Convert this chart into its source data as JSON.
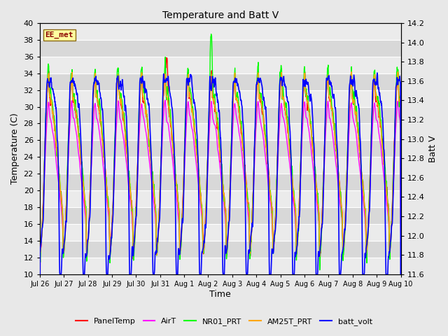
{
  "title": "Temperature and Batt V",
  "xlabel": "Time",
  "ylabel_left": "Temperature (C)",
  "ylabel_right": "Batt V",
  "ylim_left": [
    10,
    40
  ],
  "ylim_right": [
    11.6,
    14.2
  ],
  "yticks_left": [
    10,
    12,
    14,
    16,
    18,
    20,
    22,
    24,
    26,
    28,
    30,
    32,
    34,
    36,
    38,
    40
  ],
  "yticks_right_vals": [
    11.6,
    11.8,
    12.0,
    12.2,
    12.4,
    12.6,
    12.8,
    13.0,
    13.2,
    13.4,
    13.6,
    13.8,
    14.0,
    14.2
  ],
  "xtick_labels": [
    "Jul 26",
    "Jul 27",
    "Jul 28",
    "Jul 29",
    "Jul 30",
    "Jul 31",
    "Aug 1",
    "Aug 2",
    "Aug 3",
    "Aug 4",
    "Aug 5",
    "Aug 6",
    "Aug 7",
    "Aug 8",
    "Aug 9",
    "Aug 10"
  ],
  "annotation_text": "EE_met",
  "annotation_box_color": "#FFFFA0",
  "annotation_text_color": "#8B0000",
  "annotation_box_edge_color": "#8B6914",
  "line_colors": [
    "red",
    "magenta",
    "lime",
    "orange",
    "blue"
  ],
  "line_labels": [
    "PanelTemp",
    "AirT",
    "NR01_PRT",
    "AM25T_PRT",
    "batt_volt"
  ],
  "line_widths": [
    1.0,
    1.0,
    1.0,
    1.0,
    1.2
  ],
  "background_color": "#e8e8e8",
  "plot_bg_color": "#e0e0e0",
  "band_color_light": "#ebebeb",
  "band_color_dark": "#d8d8d8",
  "grid_color": "#ffffff",
  "n_days": 15.5,
  "pts_per_day": 96
}
